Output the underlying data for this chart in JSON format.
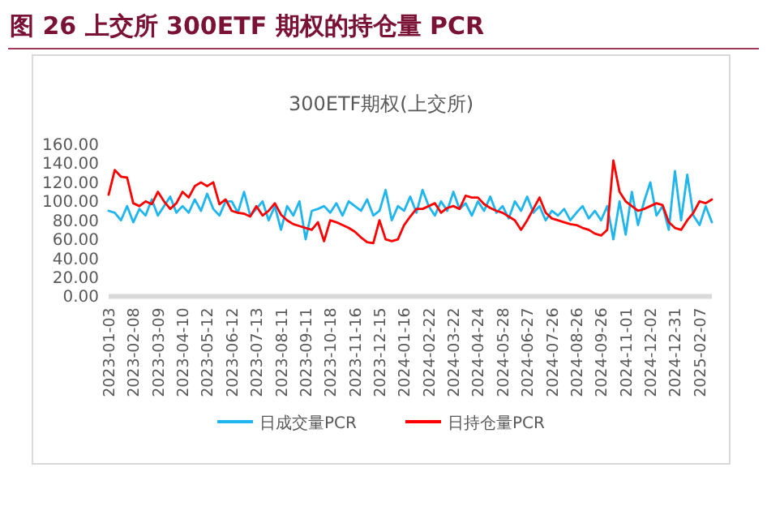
{
  "chart_data": {
    "type": "line",
    "title": "图 26 上交所 300ETF 期权的持仓量 PCR",
    "subtitle": "300ETF期权(上交所)",
    "categories": [
      "2023-01-03",
      null,
      null,
      null,
      "2023-02-08",
      null,
      null,
      null,
      "2023-03-09",
      null,
      null,
      null,
      "2023-04-10",
      null,
      null,
      null,
      "2023-05-12",
      null,
      null,
      null,
      "2023-06-12",
      null,
      null,
      null,
      "2023-07-13",
      null,
      null,
      null,
      "2023-08-11",
      null,
      null,
      null,
      "2023-09-11",
      null,
      null,
      null,
      "2023-10-18",
      null,
      null,
      null,
      "2023-11-16",
      null,
      null,
      null,
      "2023-12-15",
      null,
      null,
      null,
      "2024-01-16",
      null,
      null,
      null,
      "2024-02-22",
      null,
      null,
      null,
      "2024-03-22",
      null,
      null,
      null,
      "2024-04-24",
      null,
      null,
      null,
      "2024-05-28",
      null,
      null,
      null,
      "2024-06-27",
      null,
      null,
      null,
      "2024-07-26",
      null,
      null,
      null,
      "2024-08-26",
      null,
      null,
      null,
      "2024-09-26",
      null,
      null,
      null,
      "2024-11-01",
      null,
      null,
      null,
      "2024-12-02",
      null,
      null,
      null,
      "2024-12-31",
      null,
      null,
      null,
      "2025-02-07",
      null,
      null
    ],
    "series": [
      {
        "name": "日成交量PCR",
        "color": "#1fb6f0",
        "values": [
          90,
          88,
          80,
          95,
          78,
          92,
          85,
          102,
          85,
          95,
          105,
          88,
          95,
          88,
          102,
          90,
          108,
          92,
          85,
          100,
          100,
          88,
          110,
          85,
          92,
          100,
          80,
          95,
          70,
          95,
          85,
          100,
          60,
          90,
          92,
          95,
          88,
          98,
          85,
          100,
          95,
          90,
          102,
          85,
          90,
          112,
          80,
          95,
          90,
          105,
          88,
          112,
          95,
          85,
          100,
          90,
          110,
          92,
          98,
          85,
          100,
          90,
          105,
          88,
          95,
          82,
          100,
          90,
          105,
          88,
          95,
          80,
          90,
          85,
          92,
          80,
          88,
          95,
          82,
          90,
          80,
          95,
          60,
          100,
          65,
          110,
          75,
          100,
          120,
          85,
          95,
          70,
          132,
          80,
          128,
          85,
          75,
          95,
          78
        ]
      },
      {
        "name": "日持仓量PCR",
        "color": "#ff0000",
        "values": [
          107,
          133,
          126,
          125,
          98,
          95,
          100,
          97,
          110,
          100,
          92,
          98,
          110,
          104,
          116,
          120,
          116,
          120,
          97,
          102,
          90,
          88,
          87,
          84,
          95,
          85,
          90,
          98,
          86,
          80,
          76,
          74,
          72,
          70,
          78,
          58,
          80,
          78,
          75,
          72,
          68,
          62,
          57,
          56,
          80,
          60,
          58,
          60,
          75,
          84,
          92,
          92,
          95,
          98,
          88,
          93,
          95,
          92,
          106,
          104,
          104,
          97,
          93,
          90,
          88,
          84,
          80,
          70,
          80,
          92,
          104,
          88,
          82,
          80,
          78,
          76,
          75,
          72,
          70,
          66,
          64,
          70,
          143,
          110,
          100,
          95,
          90,
          92,
          95,
          98,
          96,
          78,
          72,
          70,
          80,
          88,
          100,
          98,
          102
        ]
      }
    ],
    "ylim": [
      0,
      160
    ],
    "yticks": [
      {
        "value": 0,
        "label": "0.00"
      },
      {
        "value": 20,
        "label": "20.00"
      },
      {
        "value": 40,
        "label": "40.00"
      },
      {
        "value": 60,
        "label": "60.00"
      },
      {
        "value": 80,
        "label": "80.00"
      },
      {
        "value": 100,
        "label": "100.00"
      },
      {
        "value": 120,
        "label": "120.00"
      },
      {
        "value": 140,
        "label": "140.00"
      },
      {
        "value": 160,
        "label": "160.00"
      }
    ],
    "grid": false,
    "legend": "bottom",
    "marker": "none",
    "line_style": "solid"
  }
}
